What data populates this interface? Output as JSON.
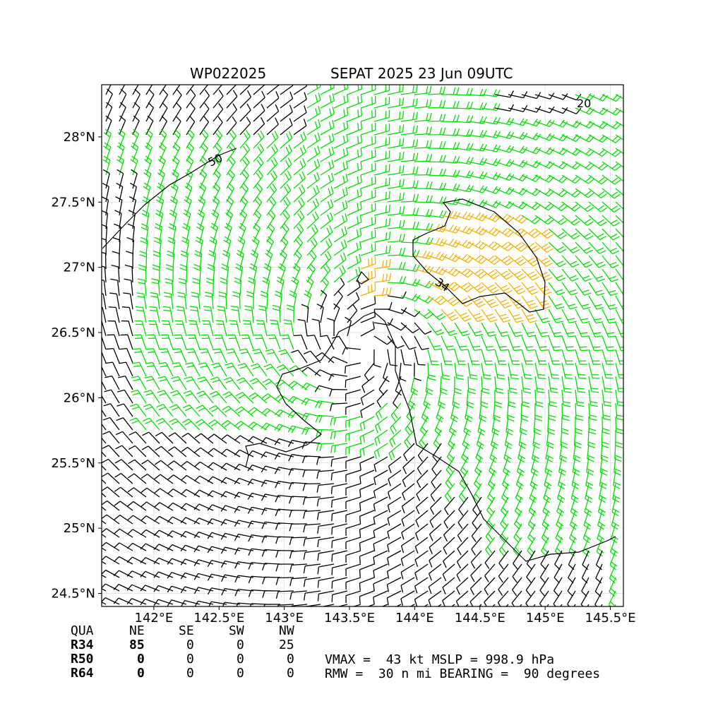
{
  "title": {
    "storm_id": "WP022025",
    "name_time": "SEPAT 2025 23 Jun 09UTC"
  },
  "map": {
    "lon_range": [
      141.6,
      145.6
    ],
    "lat_range": [
      24.4,
      28.4
    ],
    "lon_ticks": [
      "142°E",
      "142.5°E",
      "143°E",
      "143.5°E",
      "144°E",
      "144.5°E",
      "145°E",
      "145.5°E"
    ],
    "lat_ticks": [
      "28°N",
      "27.5°N",
      "27°N",
      "26.5°N",
      "26°N",
      "25.5°N",
      "25°N",
      "24.5°N"
    ],
    "grid": true,
    "storm_center": {
      "lon": 143.6,
      "lat": 26.4
    },
    "contour_labels": [
      "50",
      "34",
      "20"
    ],
    "colors": {
      "low_wind": "#000000",
      "gale": "#00e000",
      "storm": "#f5b000",
      "contour": "#000000"
    }
  },
  "wind_radii": {
    "headers": [
      "QUA",
      "NE",
      "SE",
      "SW",
      "NW"
    ],
    "rows": [
      {
        "label": "R34",
        "values": [
          "85",
          "0",
          "0",
          "25"
        ]
      },
      {
        "label": "R50",
        "values": [
          "0",
          "0",
          "0",
          "0"
        ]
      },
      {
        "label": "R64",
        "values": [
          "0",
          "0",
          "0",
          "0"
        ]
      }
    ]
  },
  "summary": {
    "line1": "VMAX =  43 kt MSLP = 998.9 hPa",
    "line2": "RMW =  30 n mi BEARING =  90 degrees"
  }
}
